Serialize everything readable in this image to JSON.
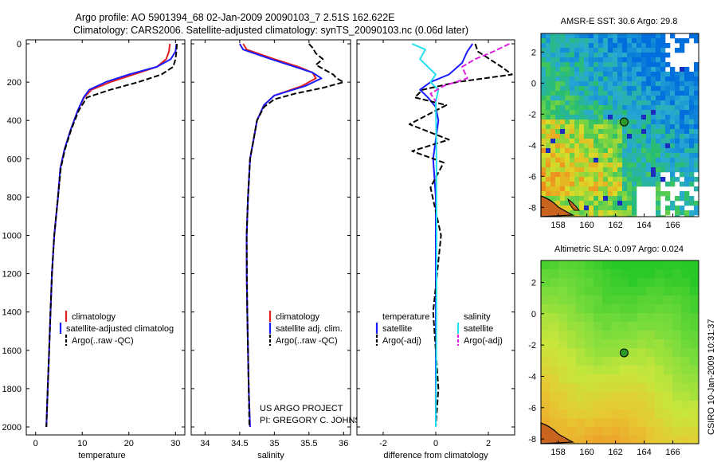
{
  "figure": {
    "title_line1": "Argo profile: AO 5901394_68 02-Jan-2009 20090103_7 2.51S 162.622E",
    "title_line2": "Climatology: CARS2006. Satellite-adjusted climatology: synTS_20090103.nc (0.06d later)",
    "vertical_credit": "CSIRO 10-Jan-2009 10:31:37",
    "project_line1": "US ARGO PROJECT",
    "project_line2": "PI: GREGORY C. JOHNSON"
  },
  "colors": {
    "climatology": "#e02020",
    "satellite": "#1a1aff",
    "argo": "#000000",
    "sat_salinity": "#22e0f0",
    "argo_salinity": "#e020e0"
  },
  "chart_data": [
    {
      "type": "line",
      "panel": "temperature",
      "xlabel": "temperature",
      "ylabel": "",
      "xlim": [
        -2,
        32
      ],
      "ylim": [
        2000,
        0
      ],
      "xticks": [
        0,
        10,
        20,
        30
      ],
      "yticks": [
        0,
        200,
        400,
        600,
        800,
        1000,
        1200,
        1400,
        1600,
        1800,
        2000
      ],
      "legend": [
        "climatology",
        "satellite-adjusted climatolog",
        "Argo(..raw -QC)"
      ],
      "series": [
        {
          "name": "climatology",
          "style": "solid",
          "color": "#e02020",
          "x": [
            28.8,
            28.6,
            28.0,
            26.0,
            21.0,
            16.0,
            12.0,
            10.4,
            9.0,
            7.5,
            6.2,
            5.3,
            4.8,
            4.0,
            3.5,
            3.2,
            2.9,
            2.6,
            2.3
          ],
          "y": [
            0,
            40,
            80,
            120,
            160,
            200,
            240,
            280,
            350,
            450,
            550,
            650,
            800,
            1000,
            1200,
            1400,
            1600,
            1800,
            2000
          ]
        },
        {
          "name": "satellite-adjusted climatolog",
          "style": "solid",
          "color": "#1a1aff",
          "x": [
            30.2,
            30.0,
            29.0,
            26.0,
            20.0,
            15.0,
            11.5,
            10.3,
            9.0,
            7.5,
            6.2,
            5.3,
            4.8,
            4.0,
            3.5,
            3.2,
            2.9,
            2.6,
            2.3
          ],
          "y": [
            0,
            40,
            80,
            120,
            160,
            200,
            240,
            280,
            350,
            450,
            550,
            650,
            800,
            1000,
            1200,
            1400,
            1600,
            1800,
            2000
          ]
        },
        {
          "name": "Argo(..raw -QC)",
          "style": "dashed",
          "color": "#000000",
          "x": [
            30.3,
            30.2,
            30.0,
            29.5,
            27.0,
            22.0,
            16.0,
            11.0,
            9.2,
            7.6,
            6.3,
            5.4,
            4.8,
            4.0,
            3.5,
            3.2,
            2.9,
            2.6,
            2.3
          ],
          "y": [
            0,
            40,
            80,
            120,
            160,
            200,
            240,
            280,
            350,
            450,
            550,
            650,
            800,
            1000,
            1200,
            1400,
            1600,
            1800,
            2000
          ]
        }
      ]
    },
    {
      "type": "line",
      "panel": "salinity",
      "xlabel": "salinity",
      "ylabel": "",
      "xlim": [
        33.8,
        36.1
      ],
      "ylim": [
        2000,
        0
      ],
      "xticks": [
        34,
        34.5,
        35,
        35.5,
        36
      ],
      "legend": [
        "climatology",
        "satellite adj. clim.",
        "Argo(..raw -QC)"
      ],
      "series": [
        {
          "name": "climatology",
          "style": "solid",
          "color": "#e02020",
          "x": [
            34.55,
            34.6,
            35.0,
            35.35,
            35.55,
            35.6,
            35.4,
            35.0,
            34.85,
            34.75,
            34.7,
            34.65,
            34.62,
            34.6,
            34.6,
            34.61,
            34.62,
            34.63,
            34.64,
            34.65
          ],
          "y": [
            0,
            30,
            80,
            120,
            150,
            180,
            220,
            270,
            320,
            400,
            500,
            600,
            800,
            1000,
            1200,
            1400,
            1600,
            1800,
            1900,
            2000
          ]
        },
        {
          "name": "satellite adj. clim.",
          "style": "solid",
          "color": "#1a1aff",
          "x": [
            34.5,
            34.55,
            34.95,
            35.3,
            35.55,
            35.68,
            35.45,
            35.0,
            34.85,
            34.75,
            34.7,
            34.65,
            34.62,
            34.6,
            34.6,
            34.61,
            34.62,
            34.63,
            34.64,
            34.65
          ],
          "y": [
            0,
            30,
            80,
            120,
            150,
            180,
            220,
            270,
            320,
            400,
            500,
            600,
            800,
            1000,
            1200,
            1400,
            1600,
            1800,
            1900,
            2000
          ]
        },
        {
          "name": "Argo(..raw -QC)",
          "style": "dashed",
          "color": "#000000",
          "x": [
            35.5,
            35.55,
            35.6,
            35.7,
            35.6,
            35.75,
            35.85,
            35.9,
            36.0,
            35.7,
            35.3,
            35.0,
            34.85,
            34.75,
            34.7,
            34.65,
            34.62,
            34.6,
            34.61,
            34.62,
            34.63,
            34.64
          ],
          "y": [
            0,
            20,
            50,
            80,
            110,
            140,
            160,
            180,
            200,
            230,
            260,
            290,
            330,
            400,
            500,
            600,
            800,
            1000,
            1400,
            1600,
            1800,
            2000
          ]
        }
      ]
    },
    {
      "type": "line",
      "panel": "difference",
      "xlabel": "difference from climatology",
      "ylabel": "",
      "xlim": [
        -3,
        3
      ],
      "ylim": [
        2000,
        0
      ],
      "xticks": [
        -2,
        0,
        2
      ],
      "legend": [
        "temperature",
        "satellite",
        "Argo(-adj)",
        "salinity",
        "satellite",
        "Argo(-adj)"
      ],
      "series": [
        {
          "name": "satellite",
          "style": "solid",
          "color": "#1a1aff",
          "x": [
            1.4,
            1.2,
            1.0,
            0.5,
            -0.2,
            -0.6,
            -0.3,
            0.0,
            0.1,
            0.0,
            -0.1,
            0.0,
            0.0,
            0.0,
            0.0,
            0.0
          ],
          "y": [
            0,
            40,
            100,
            160,
            200,
            240,
            280,
            330,
            400,
            500,
            600,
            800,
            1000,
            1400,
            1800,
            2000
          ]
        },
        {
          "name": "Argo(-adj)",
          "style": "dashed",
          "color": "#000000",
          "x": [
            1.5,
            1.6,
            2.5,
            2.9,
            0.8,
            -0.5,
            -0.8,
            0.4,
            -1.0,
            0.5,
            -0.9,
            0.3,
            -0.2,
            0.2,
            -0.1,
            0.1,
            0.0
          ],
          "y": [
            0,
            40,
            120,
            160,
            200,
            240,
            280,
            320,
            420,
            500,
            560,
            620,
            750,
            1000,
            1400,
            1800,
            2000
          ]
        },
        {
          "name": "satellite",
          "style": "solid",
          "color": "#22e0f0",
          "x": [
            -0.9,
            -0.4,
            -0.6,
            -0.3,
            0.0,
            -0.2,
            0.1,
            0.0,
            0.02,
            0.03,
            0.02,
            0.0
          ],
          "y": [
            0,
            30,
            80,
            120,
            160,
            200,
            240,
            300,
            500,
            1000,
            1600,
            2000
          ]
        },
        {
          "name": "Argo(-adj)",
          "style": "dashed",
          "color": "#e020e0",
          "x": [
            2.8,
            2.2,
            1.5,
            1.0,
            1.2,
            0.3,
            -0.2,
            0.0
          ],
          "y": [
            0,
            40,
            80,
            120,
            180,
            220,
            260,
            300
          ]
        }
      ]
    }
  ],
  "maps": [
    {
      "panel": "sst",
      "title": "AMSR-E SST: 30.6 Argo: 29.8",
      "xticks": [
        158,
        160,
        162,
        164,
        166
      ],
      "yticks": [
        2,
        0,
        -2,
        -4,
        -6,
        -8
      ],
      "xlim": [
        156.8,
        167.8
      ],
      "ylim": [
        -8.6,
        3.2
      ],
      "argo_position": {
        "lon": 162.6,
        "lat": -2.5
      }
    },
    {
      "panel": "sla",
      "title": "Altimetric SLA: 0.097 Argo: 0.024",
      "xticks": [
        158,
        160,
        162,
        164,
        166
      ],
      "yticks": [
        2,
        0,
        -2,
        -4,
        -6,
        -8
      ],
      "xlim": [
        156.8,
        167.8
      ],
      "ylim": [
        -8.3,
        3.4
      ],
      "argo_position": {
        "lon": 162.6,
        "lat": -2.5
      }
    }
  ]
}
